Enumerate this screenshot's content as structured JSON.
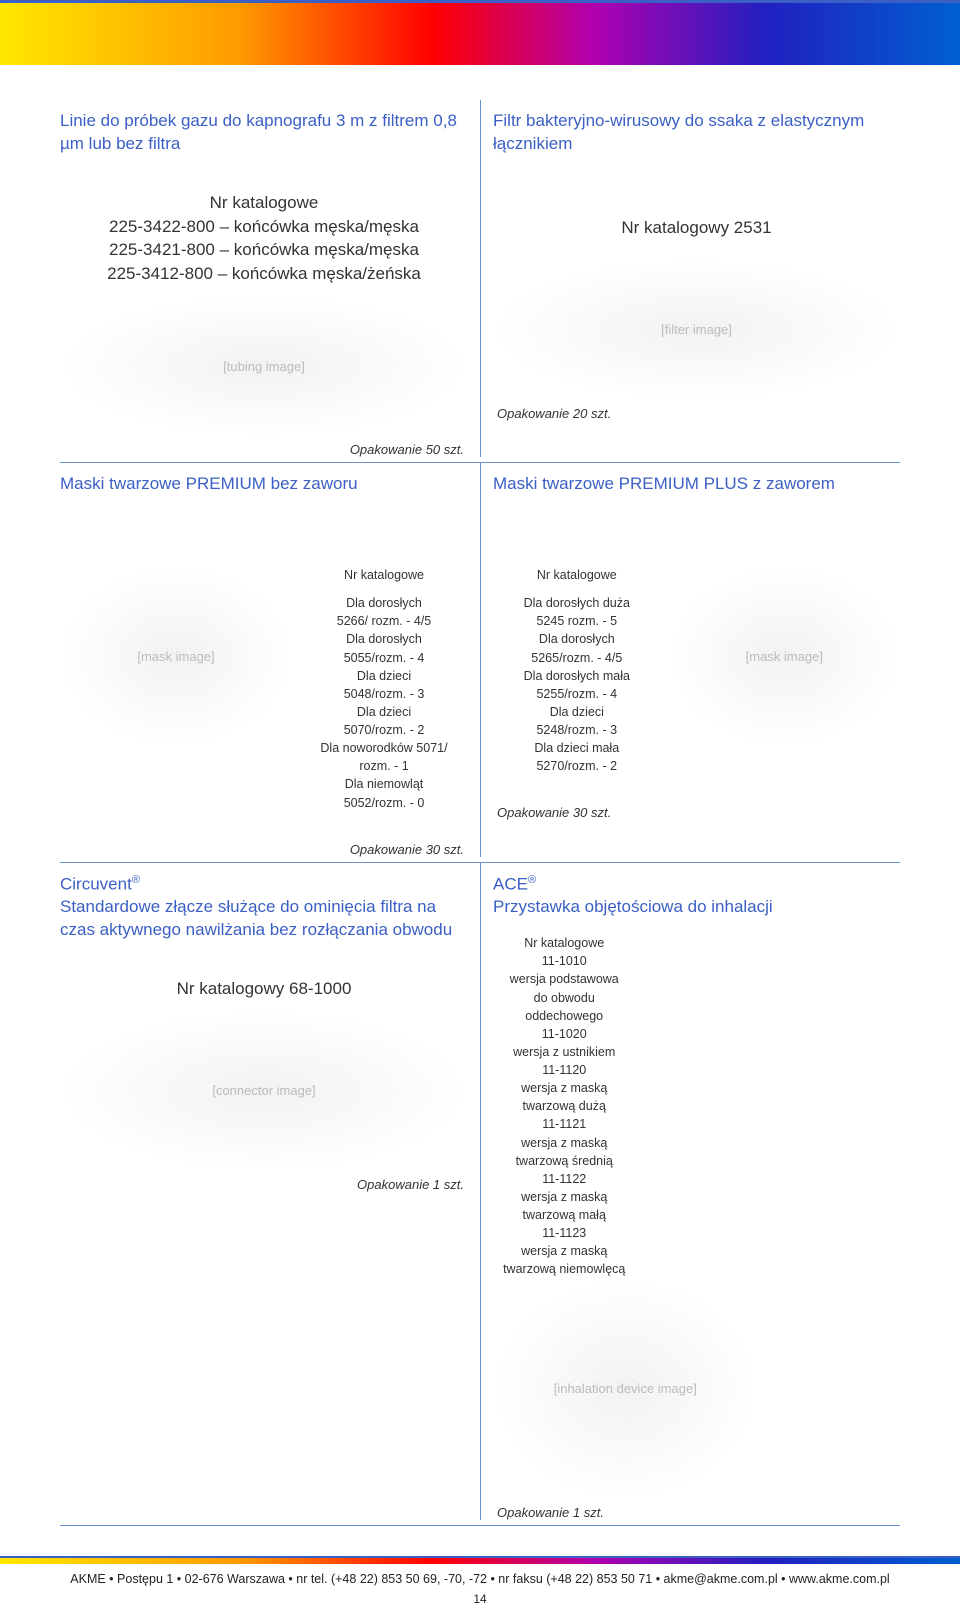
{
  "colors": {
    "title_color": "#3b5fc4",
    "border_color": "#6b8fd1",
    "gradient": [
      "#ffe800",
      "#ff9a00",
      "#ff0000",
      "#b000b0",
      "#2020c0",
      "#0060d0"
    ]
  },
  "row1": {
    "left": {
      "title": "Linie do próbek gazu do kapnografu 3 m z filtrem 0,8 µm lub bez filtra",
      "catalog_heading": "Nr katalogowe",
      "catalog_lines": "225-3422-800 – końcówka męska/męska\n225-3421-800 – końcówka męska/męska\n225-3412-800 – końcówka męska/żeńska",
      "pack": "Opakowanie 50 szt."
    },
    "right": {
      "title": "Filtr bakteryjno-wirusowy do ssaka z elastycznym łącznikiem",
      "catalog": "Nr katalogowy 2531",
      "pack": "Opakowanie 20 szt."
    }
  },
  "row2": {
    "left": {
      "title": "Maski twarzowe PREMIUM bez zaworu",
      "catalog_heading": "Nr katalogowe",
      "catalog_body": "Dla dorosłych\n5266/ rozm.  - 4/5\nDla dorosłych\n5055/rozm. - 4\nDla dzieci\n5048/rozm. - 3\nDla dzieci\n5070/rozm. - 2\nDla noworodków 5071/\nrozm. - 1\nDla niemowląt\n5052/rozm. - 0",
      "pack": "Opakowanie 30 szt."
    },
    "right": {
      "title": "Maski twarzowe PREMIUM PLUS z zaworem",
      "catalog_heading": "Nr katalogowe",
      "catalog_body": "Dla dorosłych duża\n5245 rozm. - 5\nDla dorosłych\n5265/rozm. - 4/5\nDla dorosłych mała\n5255/rozm. - 4\nDla dzieci\n5248/rozm. - 3\nDla dzieci mała\n5270/rozm. - 2",
      "pack": "Opakowanie 30 szt."
    }
  },
  "row3": {
    "left": {
      "title_html": "Circuvent<sup>®</sup><br>Standardowe złącze służące do ominięcia filtra na czas aktywnego nawilżania bez rozłączania obwodu",
      "catalog": "Nr katalogowy 68-1000",
      "pack": "Opakowanie 1 szt."
    },
    "right": {
      "title_html": "ACE<sup>®</sup><br>Przystawka objętościowa do inhalacji",
      "catalog_body": "Nr katalogowe\n11-1010\nwersja podstawowa\ndo obwodu\noddechowego\n11-1020\nwersja z ustnikiem\n11-1120\nwersja z maską\ntwarzową dużą\n11-1121\nwersja z maską\ntwarzową średnią\n11-1122\nwersja z maską\ntwarzową małą\n11-1123\nwersja z maską\ntwarzową niemowlęcą",
      "pack": "Opakowanie 1 szt."
    }
  },
  "footer": {
    "text": "AKME • Postępu 1 • 02-676 Warszawa • nr tel. (+48 22) 853 50 69, -70, -72 • nr faksu (+48 22) 853 50 71 • akme@akme.com.pl • www.akme.com.pl",
    "page": "14"
  }
}
